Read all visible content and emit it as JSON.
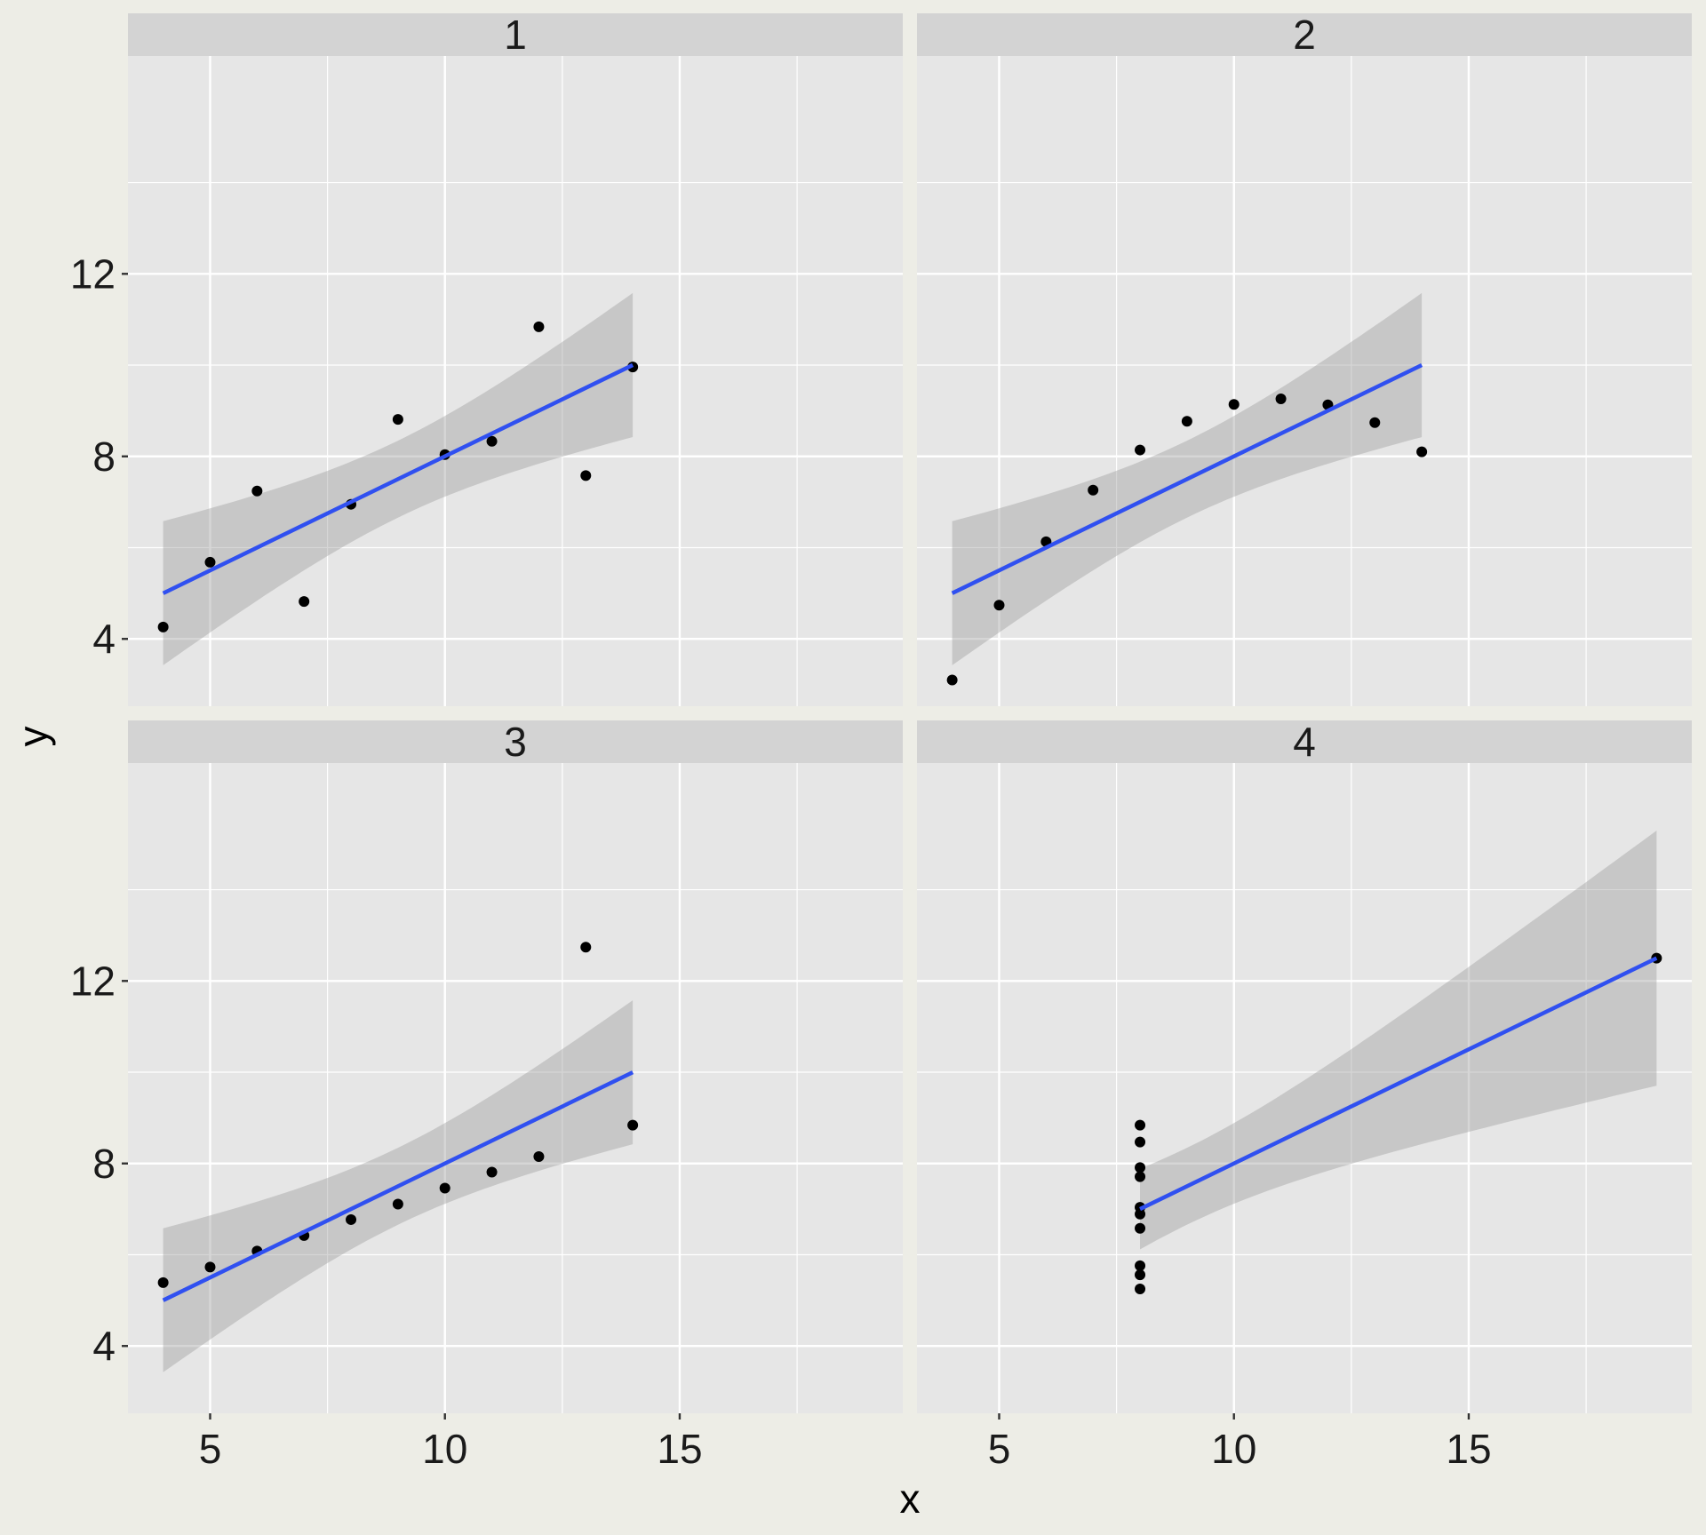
{
  "chart_data": {
    "type": "scatter",
    "facets": [
      {
        "label": "1",
        "x": [
          10,
          8,
          13,
          9,
          11,
          14,
          6,
          4,
          12,
          7,
          5
        ],
        "y": [
          8.04,
          6.95,
          7.58,
          8.81,
          8.33,
          9.96,
          7.24,
          4.26,
          10.84,
          4.82,
          5.68
        ]
      },
      {
        "label": "2",
        "x": [
          10,
          8,
          13,
          9,
          11,
          14,
          6,
          4,
          12,
          7,
          5
        ],
        "y": [
          9.14,
          8.14,
          8.74,
          8.77,
          9.26,
          8.1,
          6.13,
          3.1,
          9.13,
          7.26,
          4.74
        ]
      },
      {
        "label": "3",
        "x": [
          10,
          8,
          13,
          9,
          11,
          14,
          6,
          4,
          12,
          7,
          5
        ],
        "y": [
          7.46,
          6.77,
          12.74,
          7.11,
          7.81,
          8.84,
          6.08,
          5.39,
          8.15,
          6.42,
          5.73
        ]
      },
      {
        "label": "4",
        "x": [
          8,
          8,
          8,
          8,
          8,
          8,
          8,
          19,
          8,
          8,
          8
        ],
        "y": [
          6.58,
          5.76,
          7.71,
          8.84,
          8.47,
          7.04,
          5.25,
          12.5,
          5.56,
          7.91,
          6.89
        ]
      }
    ],
    "fit": {
      "method": "lm",
      "intercept": 3.0,
      "slope": 0.5,
      "se": true
    },
    "xlabel": "x",
    "ylabel": "y",
    "xlim": [
      3.25,
      19.75
    ],
    "ylim": [
      2.525,
      16.775
    ],
    "x_ticks": [
      5,
      10,
      15
    ],
    "x_tick_labels": [
      "5",
      "10",
      "15"
    ],
    "y_ticks": [
      4,
      8,
      12
    ],
    "y_tick_labels": [
      "4",
      "8",
      "12"
    ],
    "grid": true,
    "legend": "none",
    "colors": {
      "background": "#edede6",
      "panel": "#e6e6e6",
      "strip": "#d3d3d3",
      "grid": "#ffffff",
      "points": "#000000",
      "fit_line": "#3050f0",
      "ribbon": "#999999"
    }
  }
}
